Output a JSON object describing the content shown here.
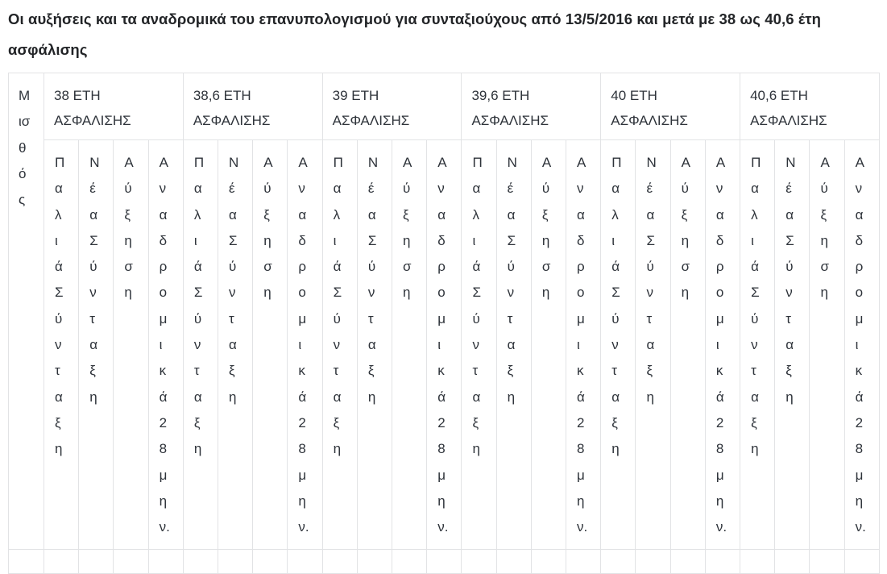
{
  "page": {
    "title": "Οι αυξήσεις και τα αναδρομικά του επανυπολογισμού για συνταξιούχους από 13/5/2016 και μετά με 38 ως 40,6 έτη\nασφάλισης"
  },
  "table": {
    "salary_column": {
      "label": "Μισθός",
      "lines": "Μ\nισ\nθ\nό\nς"
    },
    "groups": [
      {
        "label": "38 ΕΤΗ ΑΣΦΑΛΙΣΗΣ"
      },
      {
        "label": "38,6 ΕΤΗ ΑΣΦΑΛΙΣΗΣ"
      },
      {
        "label": "39 ΕΤΗ ΑΣΦΑΛΙΣΗΣ"
      },
      {
        "label": "39,6 ΕΤΗ ΑΣΦΑΛΙΣΗΣ"
      },
      {
        "label": "40 ΕΤΗ ΑΣΦΑΛΙΣΗΣ"
      },
      {
        "label": "40,6 ΕΤΗ ΑΣΦΑΛΙΣΗΣ"
      }
    ],
    "sub_headers": [
      {
        "label": "Παλιά Σύνταξη",
        "lines": "Π\nα\nλ\nι\nά\nΣ\nύ\nν\nτ\nα\nξ\nη"
      },
      {
        "label": "Νέα Σύνταξη",
        "lines": "Ν\nέ\nα\nΣ\nύ\nν\nτ\nα\nξ\nη"
      },
      {
        "label": "Αύξηση",
        "lines": "Α\nύ\nξ\nη\nσ\nη"
      },
      {
        "label": "Αναδρομικά 28μην.",
        "lines": "Α\nν\nα\nδ\nρ\nο\nμ\nι\nκ\nά\n2\n8\nμ\nη\nν."
      }
    ],
    "colors": {
      "border": "#e2e3e5",
      "text": "#2e333a",
      "title": "#222427"
    }
  }
}
